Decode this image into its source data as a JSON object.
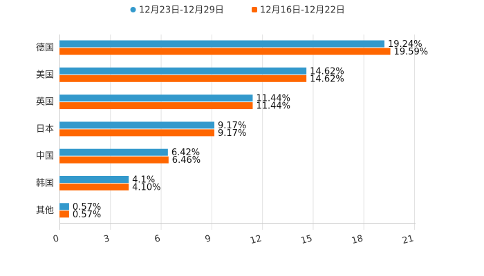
{
  "chart_data": {
    "type": "bar",
    "orientation": "horizontal",
    "title": "",
    "xlabel": "",
    "ylabel": "",
    "xlim": [
      0,
      21
    ],
    "xticks": [
      0,
      3,
      6,
      9,
      12,
      15,
      18,
      21
    ],
    "xtick_labels": [
      "0",
      "3",
      "6",
      "9",
      "12",
      "15",
      "18",
      "21"
    ],
    "grid": true,
    "legend_position": "top-center",
    "categories": [
      "德国",
      "美国",
      "英国",
      "日本",
      "中国",
      "韩国",
      "其他"
    ],
    "series": [
      {
        "name": "12月23日-12月29日",
        "color": "#3399cc",
        "values": [
          19.24,
          14.62,
          11.44,
          9.17,
          6.42,
          4.1,
          0.57
        ],
        "labels": [
          "19.24%",
          "14.62%",
          "11.44%",
          "9.17%",
          "6.42%",
          "4.1%",
          "0.57%"
        ]
      },
      {
        "name": "12月16日-12月22日",
        "color": "#ff6600",
        "values": [
          19.59,
          14.62,
          11.44,
          9.17,
          6.46,
          4.1,
          0.57
        ],
        "labels": [
          "19.59%",
          "14.62%",
          "11.44%",
          "9.17%",
          "6.46%",
          "4.10%",
          "0.57%"
        ]
      }
    ]
  }
}
